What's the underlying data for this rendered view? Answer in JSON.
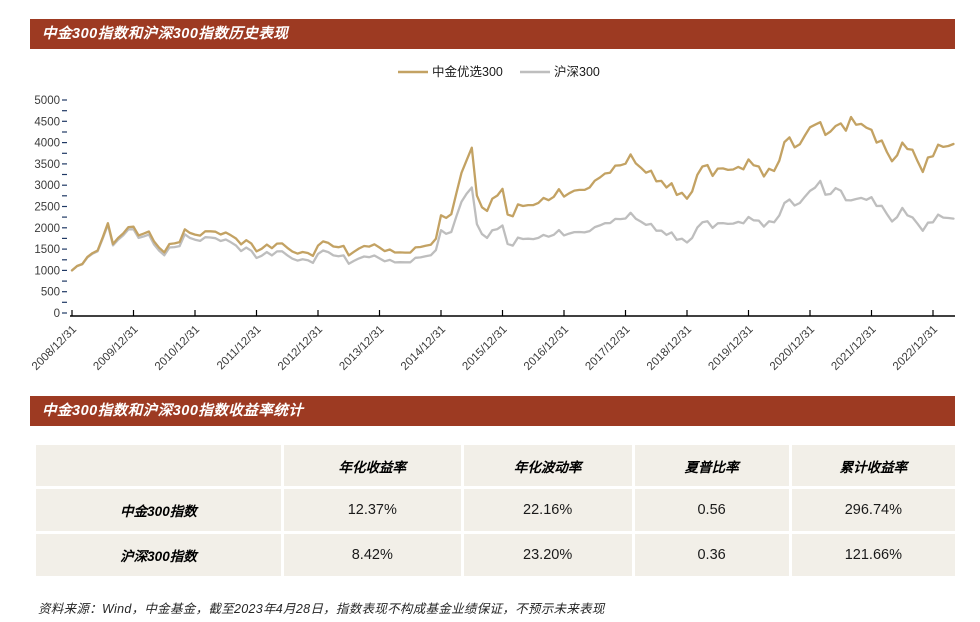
{
  "colors": {
    "accent_bar": "#9D3A22",
    "table_cell_bg": "#F2EFE8",
    "axis_text": "#3b3b3b",
    "axis_line": "#000000",
    "y_minor_tick": "#1F3864",
    "series_gold": "#C3A263",
    "series_gray": "#BEBEBE"
  },
  "chart_section": {
    "title": "中金300指数和沪深300指数历史表现"
  },
  "table_section": {
    "title": "中金300指数和沪深300指数收益率统计",
    "columns": [
      "",
      "年化收益率",
      "年化波动率",
      "夏普比率",
      "累计收益率"
    ],
    "rows": [
      {
        "label": "中金300指数",
        "values": [
          "12.37%",
          "22.16%",
          "0.56",
          "296.74%"
        ]
      },
      {
        "label": "沪深300指数",
        "values": [
          "8.42%",
          "23.20%",
          "0.36",
          "121.66%"
        ]
      }
    ]
  },
  "footer": {
    "text": "资料来源：Wind，中金基金，截至2023年4月28日，指数表现不构成基金业绩保证，不预示未来表现"
  },
  "chart_data": {
    "type": "line",
    "title": "中金300指数和沪深300指数历史表现",
    "xlabel": "",
    "ylabel": "",
    "ylim": [
      0,
      5000
    ],
    "y_ticks": [
      0,
      500,
      1000,
      1500,
      2000,
      2500,
      3000,
      3500,
      4000,
      4500,
      5000
    ],
    "grid": false,
    "legend_position": "top",
    "x_tick_labels": [
      "2008/12/31",
      "2009/12/31",
      "2010/12/31",
      "2011/12/31",
      "2012/12/31",
      "2013/12/31",
      "2014/12/31",
      "2015/12/31",
      "2016/12/31",
      "2017/12/31",
      "2018/12/31",
      "2019/12/31",
      "2020/12/31",
      "2021/12/31",
      "2022/12/31"
    ],
    "x_unit": "monthly points from 2008/12 to 2023/04, tick every 12 months",
    "series": [
      {
        "name": "中金优选300",
        "color": "#C3A263",
        "values": [
          1000,
          1103,
          1150,
          1316,
          1407,
          1466,
          1780,
          2108,
          1619,
          1760,
          1870,
          2017,
          2026,
          1822,
          1865,
          1914,
          1680,
          1532,
          1422,
          1620,
          1634,
          1665,
          1964,
          1881,
          1841,
          1817,
          1919,
          1919,
          1909,
          1843,
          1890,
          1824,
          1748,
          1610,
          1708,
          1628,
          1446,
          1506,
          1605,
          1520,
          1628,
          1634,
          1530,
          1442,
          1394,
          1431,
          1409,
          1340,
          1582,
          1681,
          1645,
          1560,
          1545,
          1576,
          1351,
          1436,
          1513,
          1573,
          1558,
          1613,
          1538,
          1454,
          1491,
          1420,
          1422,
          1419,
          1417,
          1540,
          1550,
          1577,
          1602,
          1744,
          2294,
          2232,
          2320,
          2814,
          3291,
          3584,
          3880,
          2756,
          2482,
          2396,
          2683,
          2758,
          2915,
          2313,
          2269,
          2549,
          2511,
          2533,
          2533,
          2584,
          2701,
          2649,
          2728,
          2906,
          2732,
          2809,
          2874,
          2890,
          2890,
          2947,
          3106,
          3180,
          3274,
          3293,
          3461,
          3468,
          3504,
          3724,
          3511,
          3411,
          3293,
          3340,
          3091,
          3102,
          2947,
          3046,
          2773,
          2821,
          2683,
          2850,
          3241,
          3440,
          3473,
          3219,
          3389,
          3394,
          3360,
          3369,
          3429,
          3373,
          3606,
          3467,
          3440,
          3204,
          3386,
          3334,
          3574,
          4012,
          4122,
          3887,
          3961,
          4166,
          4358,
          4420,
          4480,
          4180,
          4260,
          4390,
          4450,
          4280,
          4600,
          4420,
          4440,
          4350,
          4300,
          4000,
          4050,
          3780,
          3560,
          3700,
          4000,
          3850,
          3830,
          3560,
          3310,
          3650,
          3680,
          3950,
          3900,
          3920,
          3967
        ]
      },
      {
        "name": "沪深300",
        "color": "#BEBEBE",
        "values": [
          1000,
          1100,
          1144,
          1306,
          1393,
          1448,
          1754,
          2072,
          1587,
          1721,
          1824,
          1963,
          1967,
          1763,
          1799,
          1840,
          1610,
          1464,
          1354,
          1538,
          1546,
          1571,
          1847,
          1763,
          1721,
          1692,
          1780,
          1773,
          1757,
          1690,
          1726,
          1659,
          1584,
          1454,
          1536,
          1459,
          1291,
          1343,
          1429,
          1351,
          1445,
          1448,
          1354,
          1274,
          1230,
          1261,
          1240,
          1177,
          1388,
          1468,
          1430,
          1351,
          1332,
          1353,
          1155,
          1222,
          1282,
          1327,
          1309,
          1350,
          1282,
          1213,
          1246,
          1188,
          1192,
          1191,
          1191,
          1296,
          1306,
          1331,
          1354,
          1476,
          1944,
          1860,
          1902,
          2269,
          2612,
          2800,
          2945,
          2088,
          1852,
          1762,
          1944,
          1970,
          2053,
          1621,
          1583,
          1770,
          1736,
          1743,
          1735,
          1762,
          1833,
          1790,
          1835,
          1946,
          1821,
          1864,
          1899,
          1901,
          1893,
          1922,
          2017,
          2056,
          2108,
          2111,
          2209,
          2204,
          2218,
          2352,
          2213,
          2145,
          2067,
          2092,
          1932,
          1935,
          1834,
          1892,
          1719,
          1745,
          1656,
          1761,
          2005,
          2130,
          2153,
          1997,
          2105,
          2110,
          2091,
          2099,
          2139,
          2106,
          2254,
          2176,
          2168,
          2028,
          2152,
          2128,
          2291,
          2583,
          2665,
          2524,
          2583,
          2729,
          2867,
          2944,
          3100,
          2777,
          2793,
          2933,
          2874,
          2647,
          2644,
          2677,
          2701,
          2658,
          2718,
          2511,
          2516,
          2323,
          2147,
          2251,
          2467,
          2294,
          2244,
          2093,
          1930,
          2120,
          2130,
          2311,
          2239,
          2229,
          2217
        ]
      }
    ]
  }
}
